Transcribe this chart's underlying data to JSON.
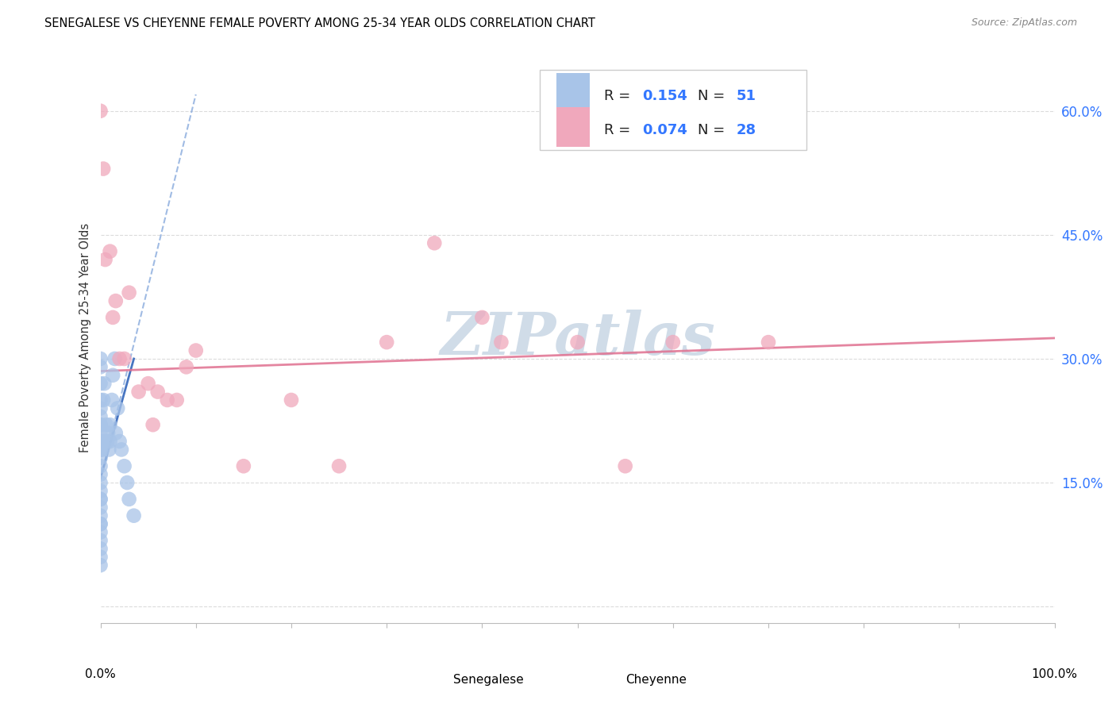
{
  "title": "SENEGALESE VS CHEYENNE FEMALE POVERTY AMONG 25-34 YEAR OLDS CORRELATION CHART",
  "source": "Source: ZipAtlas.com",
  "ylabel": "Female Poverty Among 25-34 Year Olds",
  "yticks": [
    0.0,
    0.15,
    0.3,
    0.45,
    0.6
  ],
  "ytick_labels": [
    "",
    "15.0%",
    "30.0%",
    "45.0%",
    "60.0%"
  ],
  "xlim": [
    0.0,
    1.0
  ],
  "ylim": [
    -0.02,
    0.67
  ],
  "senegalese_R": 0.154,
  "senegalese_N": 51,
  "cheyenne_R": 0.074,
  "cheyenne_N": 28,
  "senegalese_color": "#a8c4e8",
  "cheyenne_color": "#f0a8bc",
  "trendline_senegalese_color": "#88aadd",
  "trendline_cheyenne_color": "#e07090",
  "watermark": "ZIPatlas",
  "watermark_color": "#d0dce8",
  "grid_color": "#cccccc",
  "right_axis_color": "#3377ff",
  "senegalese_x": [
    0.0,
    0.0,
    0.0,
    0.0,
    0.0,
    0.0,
    0.0,
    0.0,
    0.0,
    0.0,
    0.0,
    0.0,
    0.0,
    0.0,
    0.0,
    0.0,
    0.0,
    0.0,
    0.0,
    0.0,
    0.0,
    0.0,
    0.0,
    0.0,
    0.0,
    0.0,
    0.0,
    0.0,
    0.0,
    0.0,
    0.002,
    0.003,
    0.004,
    0.005,
    0.006,
    0.007,
    0.008,
    0.009,
    0.01,
    0.01,
    0.012,
    0.013,
    0.015,
    0.016,
    0.018,
    0.02,
    0.022,
    0.025,
    0.028,
    0.03,
    0.035
  ],
  "senegalese_y": [
    0.05,
    0.06,
    0.07,
    0.08,
    0.09,
    0.1,
    0.1,
    0.11,
    0.12,
    0.13,
    0.13,
    0.14,
    0.15,
    0.16,
    0.17,
    0.18,
    0.19,
    0.19,
    0.2,
    0.2,
    0.2,
    0.21,
    0.22,
    0.22,
    0.23,
    0.24,
    0.25,
    0.27,
    0.29,
    0.3,
    0.19,
    0.25,
    0.27,
    0.2,
    0.22,
    0.2,
    0.21,
    0.19,
    0.2,
    0.22,
    0.25,
    0.28,
    0.3,
    0.21,
    0.24,
    0.2,
    0.19,
    0.17,
    0.15,
    0.13,
    0.11
  ],
  "senegalese_trendline_x": [
    0.0,
    0.1
  ],
  "senegalese_trendline_y": [
    0.155,
    0.62
  ],
  "cheyenne_x": [
    0.0,
    0.003,
    0.005,
    0.01,
    0.013,
    0.016,
    0.02,
    0.025,
    0.03,
    0.04,
    0.05,
    0.055,
    0.06,
    0.07,
    0.08,
    0.09,
    0.1,
    0.15,
    0.2,
    0.25,
    0.3,
    0.35,
    0.4,
    0.42,
    0.5,
    0.55,
    0.6,
    0.7
  ],
  "cheyenne_y": [
    0.6,
    0.53,
    0.42,
    0.43,
    0.35,
    0.37,
    0.3,
    0.3,
    0.38,
    0.26,
    0.27,
    0.22,
    0.26,
    0.25,
    0.25,
    0.29,
    0.31,
    0.17,
    0.25,
    0.17,
    0.32,
    0.44,
    0.35,
    0.32,
    0.32,
    0.17,
    0.32,
    0.32
  ],
  "cheyenne_trendline_x": [
    0.0,
    1.0
  ],
  "cheyenne_trendline_y": [
    0.285,
    0.325
  ]
}
